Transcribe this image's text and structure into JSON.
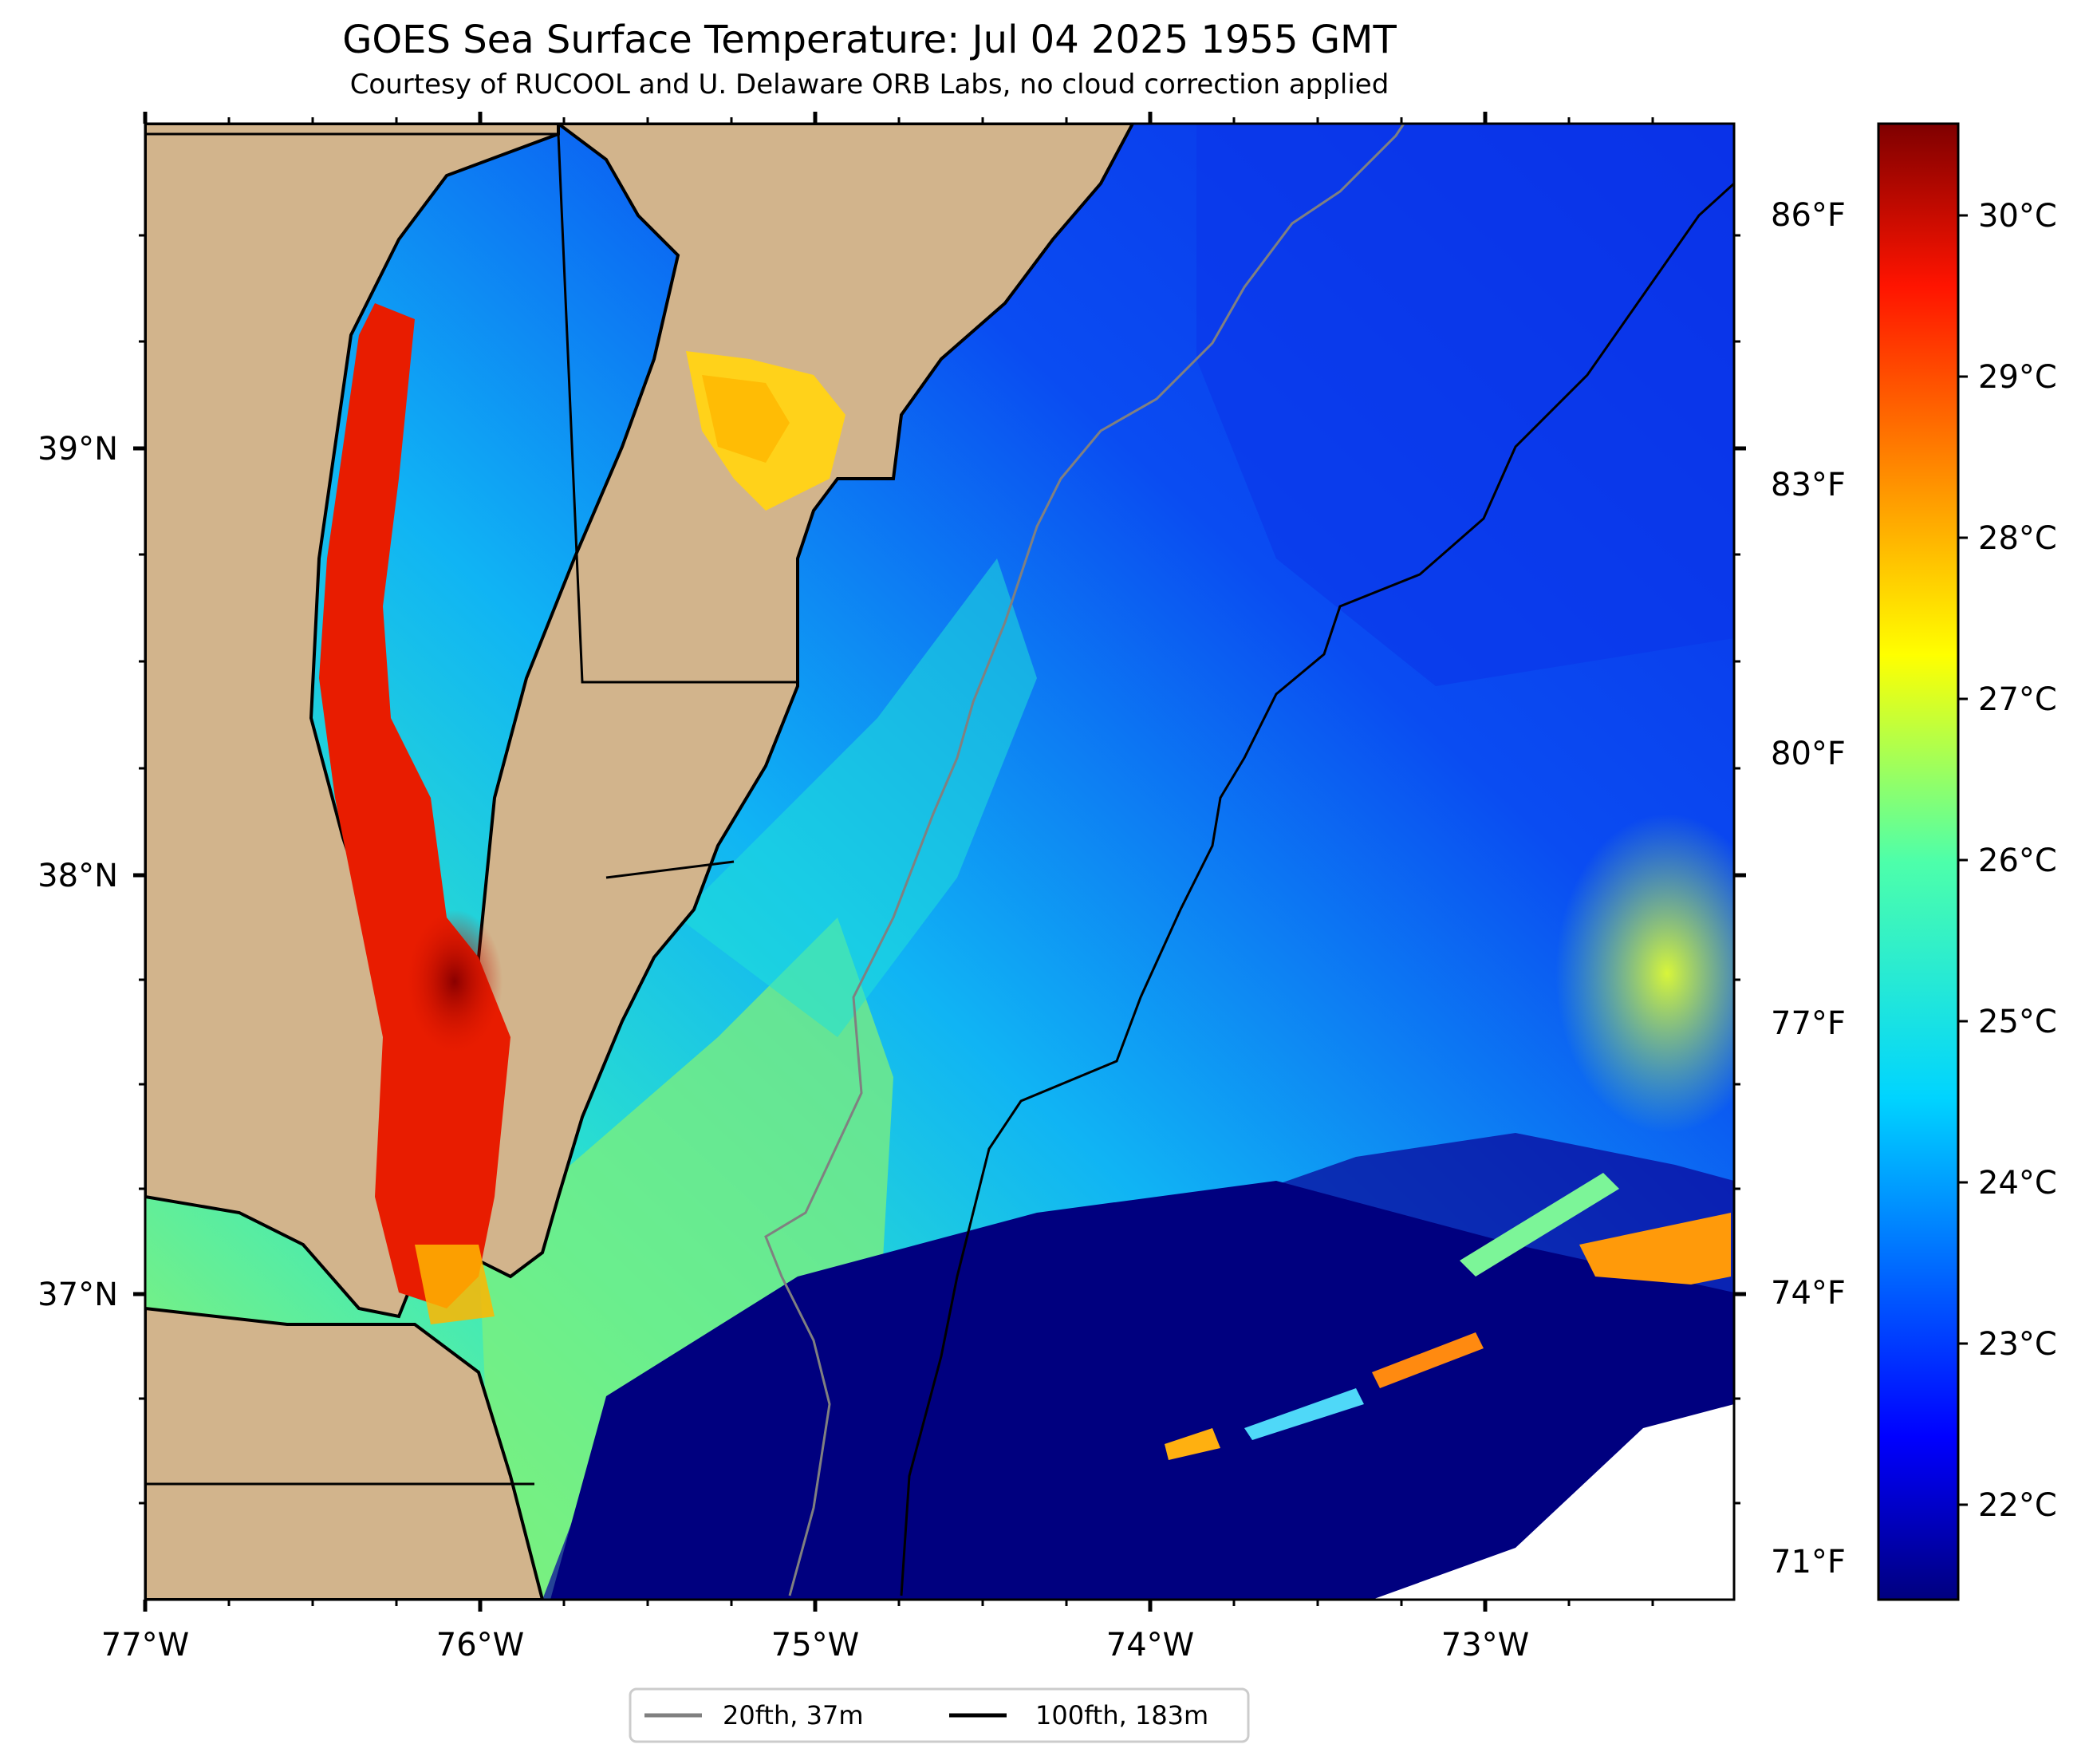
{
  "title": "GOES Sea Surface Temperature: Jul 04 2025 1955 GMT",
  "subtitle": "Courtesy of RUCOOL and U. Delaware ORB Labs, no cloud correction applied",
  "map": {
    "lon_labels": [
      "77°W",
      "76°W",
      "75°W",
      "74°W",
      "73°W"
    ],
    "lat_labels": [
      "39°N",
      "38°N",
      "37°N"
    ],
    "fahrenheit_labels": [
      "86°F",
      "83°F",
      "80°F",
      "77°F",
      "74°F",
      "71°F"
    ]
  },
  "colorbar": {
    "colormap": "jet",
    "celsius_labels": [
      "30°C",
      "29°C",
      "28°C",
      "27°C",
      "26°C",
      "25°C",
      "24°C",
      "23°C",
      "22°C"
    ]
  },
  "legend": {
    "items": [
      {
        "label": "20fth, 37m",
        "color": "#808080"
      },
      {
        "label": "100fth, 183m",
        "color": "#000000"
      }
    ]
  },
  "colors": {
    "land": "#d2b48c",
    "coast": "#000000",
    "no_data": "#ffffff"
  }
}
